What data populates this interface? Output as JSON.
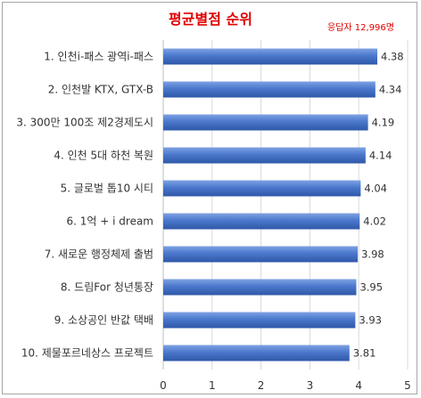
{
  "chart_data": {
    "type": "bar",
    "orientation": "horizontal",
    "title": "평균별점 순위",
    "note": "응답자 12,996명",
    "categories": [
      "1. 인천i-패스 광역i-패스",
      "2. 인천발 KTX, GTX-B",
      "3. 300만 100조 제2경제도시",
      "4. 인천 5대 하천 복원",
      "5. 글로벌 톱10 시티",
      "6. 1억 + i dream",
      "7. 새로운 행정체제 출범",
      "8. 드림For 청년통장",
      "9. 소상공인 반값 택배",
      "10. 제물포르네상스 프로젝트"
    ],
    "values": [
      4.38,
      4.34,
      4.19,
      4.14,
      4.04,
      4.02,
      3.98,
      3.95,
      3.93,
      3.81
    ],
    "value_labels": [
      "4.38",
      "4.34",
      "4.19",
      "4.14",
      "4.04",
      "4.02",
      "3.98",
      "3.95",
      "3.93",
      "3.81"
    ],
    "xlim": [
      0,
      5
    ],
    "xticks": [
      "0",
      "1",
      "2",
      "3",
      "4",
      "5"
    ],
    "grid": "vertical",
    "bar_color": "#4472c4"
  }
}
